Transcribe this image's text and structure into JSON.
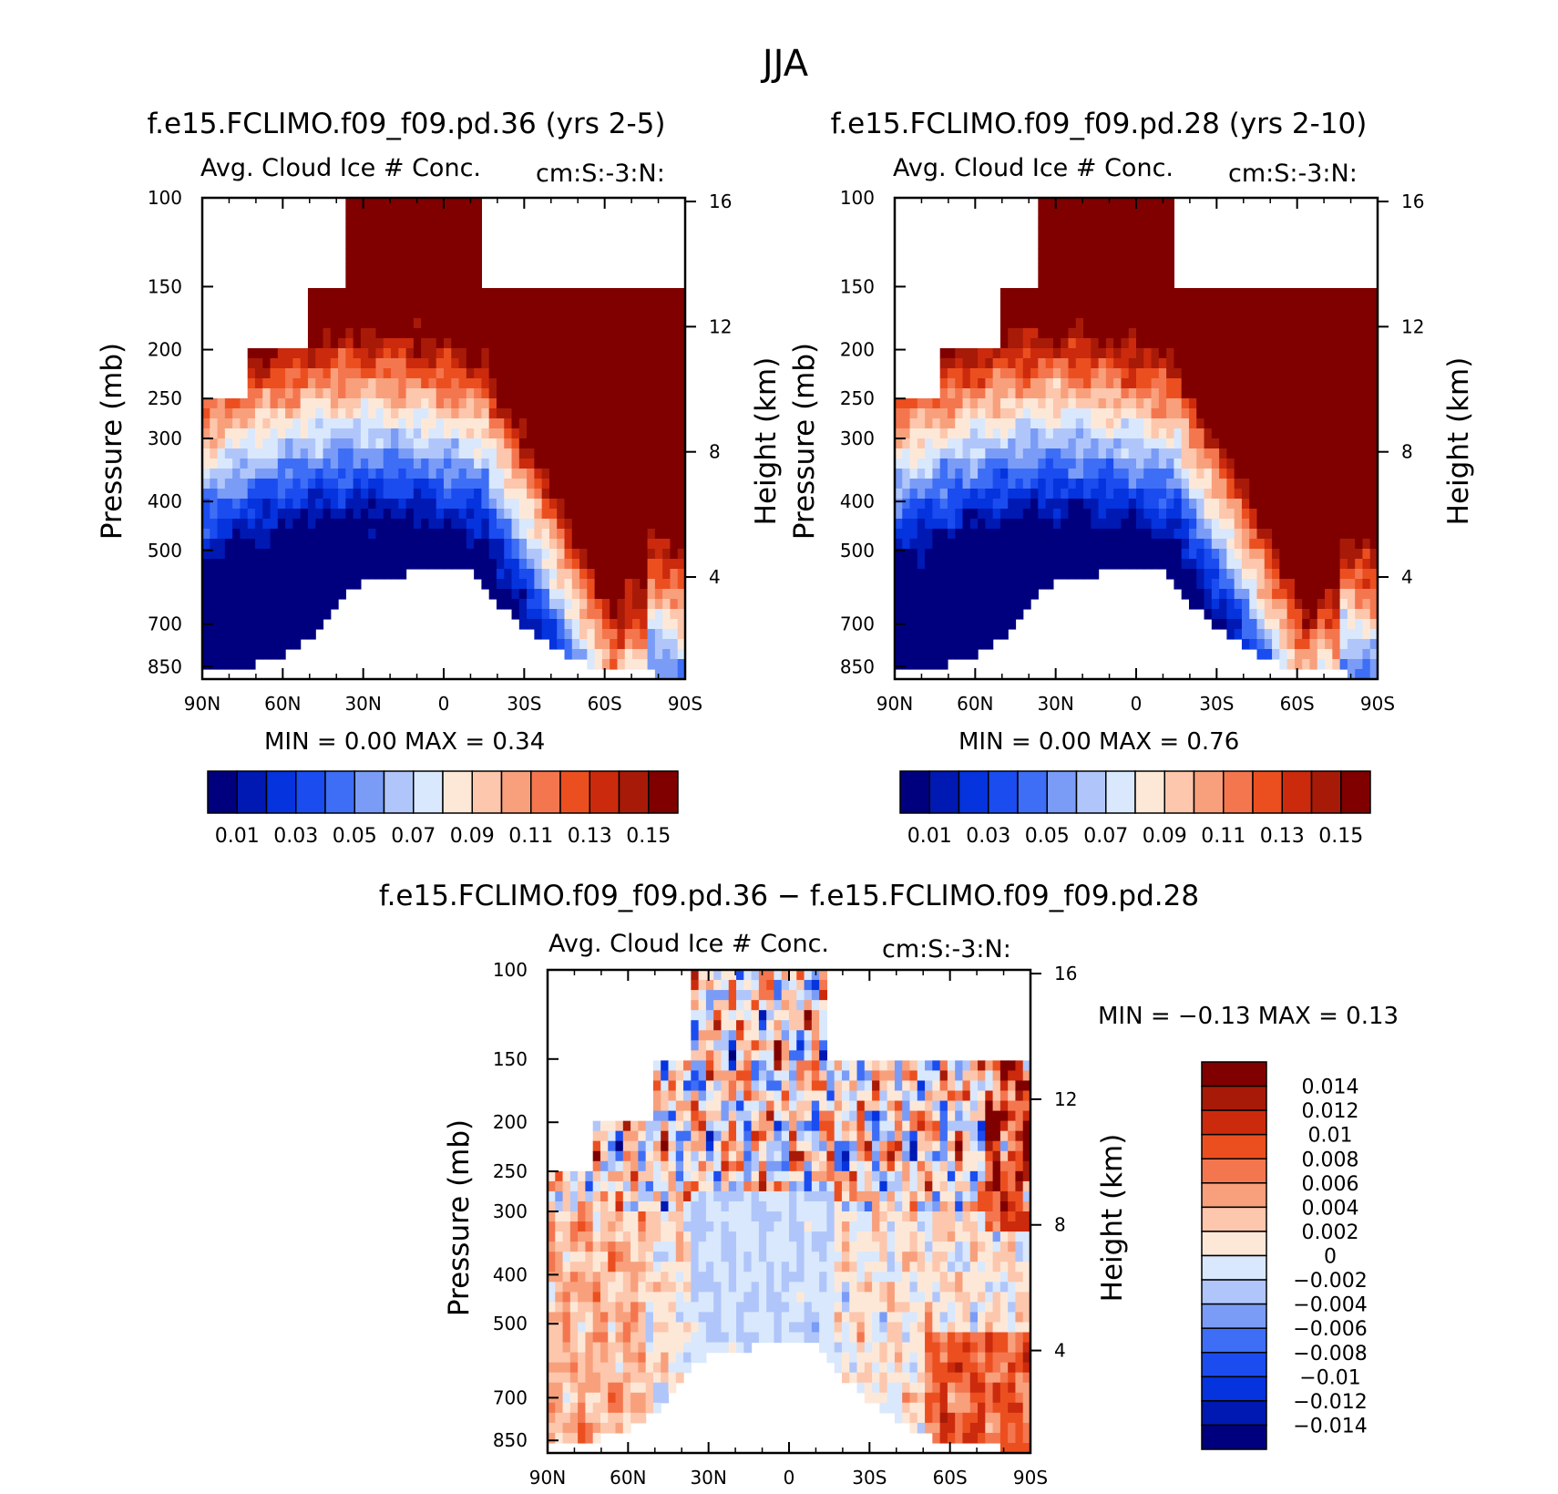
{
  "page_title": "JJA",
  "chart_data": [
    {
      "type": "heatmap",
      "title": "f.e15.FCLIMO.f09_f09.pd.36 (yrs 2-5)",
      "left_string": "Avg. Cloud Ice # Conc.",
      "right_string": "cm:S:-3:N:",
      "xlabel": "",
      "ylabel": "Pressure (mb)",
      "y2label": "Height (km)",
      "x_ticks": [
        "90N",
        "60N",
        "30N",
        "0",
        "30S",
        "60S",
        "90S"
      ],
      "y_ticks": [
        "100",
        "150",
        "200",
        "250",
        "300",
        "400",
        "500",
        "700",
        "850"
      ],
      "y_tick_values": [
        100,
        150,
        200,
        250,
        300,
        400,
        500,
        700,
        850
      ],
      "y2_ticks": [
        "16",
        "12",
        "8",
        "4"
      ],
      "ylim": [
        100,
        900
      ],
      "min_max": "MIN =     0.00   MAX =     0.34",
      "colorbar_labels": [
        "0.01",
        "0.03",
        "0.05",
        "0.07",
        "0.09",
        "0.11",
        "0.13",
        "0.15"
      ],
      "colorbar_colors": [
        "#00007f",
        "#0019b2",
        "#0533dd",
        "#1a4cf0",
        "#3d6ef5",
        "#7a9cf6",
        "#b0c6fa",
        "#d9e8fc",
        "#fde8d8",
        "#fcc7ad",
        "#f8a07c",
        "#f4764f",
        "#ec4f1f",
        "#cc2a0c",
        "#a81a08",
        "#800000"
      ]
    },
    {
      "type": "heatmap",
      "title": "f.e15.FCLIMO.f09_f09.pd.28 (yrs 2-10)",
      "left_string": "Avg. Cloud Ice # Conc.",
      "right_string": "cm:S:-3:N:",
      "xlabel": "",
      "ylabel": "Pressure (mb)",
      "y2label": "Height (km)",
      "x_ticks": [
        "90N",
        "60N",
        "30N",
        "0",
        "30S",
        "60S",
        "90S"
      ],
      "y_ticks": [
        "100",
        "150",
        "200",
        "250",
        "300",
        "400",
        "500",
        "700",
        "850"
      ],
      "y_tick_values": [
        100,
        150,
        200,
        250,
        300,
        400,
        500,
        700,
        850
      ],
      "y2_ticks": [
        "16",
        "12",
        "8",
        "4"
      ],
      "ylim": [
        100,
        900
      ],
      "min_max": "MIN =     0.00   MAX =     0.76",
      "colorbar_labels": [
        "0.01",
        "0.03",
        "0.05",
        "0.07",
        "0.09",
        "0.11",
        "0.13",
        "0.15"
      ],
      "colorbar_colors": [
        "#00007f",
        "#0019b2",
        "#0533dd",
        "#1a4cf0",
        "#3d6ef5",
        "#7a9cf6",
        "#b0c6fa",
        "#d9e8fc",
        "#fde8d8",
        "#fcc7ad",
        "#f8a07c",
        "#f4764f",
        "#ec4f1f",
        "#cc2a0c",
        "#a81a08",
        "#800000"
      ]
    },
    {
      "type": "heatmap",
      "title": "f.e15.FCLIMO.f09_f09.pd.36 − f.e15.FCLIMO.f09_f09.pd.28",
      "left_string": "Avg. Cloud Ice # Conc.",
      "right_string": "cm:S:-3:N:",
      "xlabel": "",
      "ylabel": "Pressure (mb)",
      "y2label": "Height (km)",
      "x_ticks": [
        "90N",
        "60N",
        "30N",
        "0",
        "30S",
        "60S",
        "90S"
      ],
      "y_ticks": [
        "100",
        "150",
        "200",
        "250",
        "300",
        "400",
        "500",
        "700",
        "850"
      ],
      "y_tick_values": [
        100,
        150,
        200,
        250,
        300,
        400,
        500,
        700,
        850
      ],
      "y2_ticks": [
        "16",
        "12",
        "8",
        "4"
      ],
      "ylim": [
        100,
        900
      ],
      "min_max": "MIN =    −0.13   MAX =     0.13",
      "colorbar_labels": [
        "0.014",
        "0.012",
        "0.01",
        "0.008",
        "0.006",
        "0.004",
        "0.002",
        "0",
        "−0.002",
        "−0.004",
        "−0.006",
        "−0.008",
        "−0.01",
        "−0.012",
        "−0.014"
      ],
      "colorbar_colors": [
        "#800000",
        "#a81a08",
        "#cc2a0c",
        "#ec4f1f",
        "#f4764f",
        "#f8a07c",
        "#fcc7ad",
        "#fde8d8",
        "#d9e8fc",
        "#b0c6fa",
        "#7a9cf6",
        "#3d6ef5",
        "#1a4cf0",
        "#0533dd",
        "#0019b2",
        "#00007f"
      ]
    }
  ]
}
